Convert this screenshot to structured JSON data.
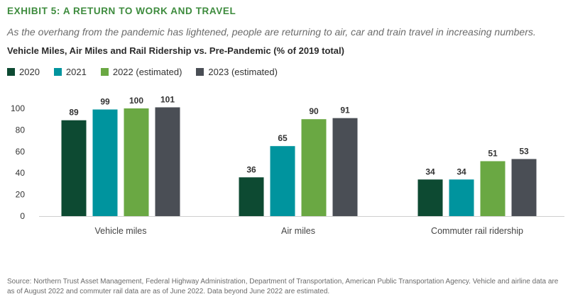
{
  "header": {
    "exhibit": "EXHIBIT 5: A RETURN TO WORK AND TRAVEL",
    "subtitle": "As the overhang from the pandemic has lightened, people are returning to air, car and train travel in increasing numbers.",
    "chart_title": "Vehicle Miles, Air Miles and Rail Ridership vs. Pre-Pandemic (% of 2019 total)"
  },
  "legend": [
    {
      "label": "2020",
      "color": "#0d4a32"
    },
    {
      "label": "2021",
      "color": "#00949e"
    },
    {
      "label": "2022 (estimated)",
      "color": "#6aa843"
    },
    {
      "label": "2023 (estimated)",
      "color": "#4a4e55"
    }
  ],
  "source": "Source: Northern Trust Asset Management, Federal Highway Administration, Department of Transportation, American Public Transportation Agency. Vehicle and airline data are as of August 2022 and commuter rail data are as of June 2022. Data beyond June 2022 are estimated.",
  "chart_data": {
    "type": "bar",
    "title": "Vehicle Miles, Air Miles and Rail Ridership vs. Pre-Pandemic (% of 2019 total)",
    "categories": [
      "Vehicle miles",
      "Air miles",
      "Commuter rail ridership"
    ],
    "series": [
      {
        "name": "2020",
        "color": "#0d4a32",
        "values": [
          89,
          36,
          34
        ]
      },
      {
        "name": "2021",
        "color": "#00949e",
        "values": [
          99,
          65,
          34
        ]
      },
      {
        "name": "2022 (estimated)",
        "color": "#6aa843",
        "values": [
          100,
          90,
          51
        ]
      },
      {
        "name": "2023 (estimated)",
        "color": "#4a4e55",
        "values": [
          101,
          91,
          53
        ]
      }
    ],
    "yticks": [
      "0",
      "20",
      "40",
      "60",
      "80",
      "100"
    ],
    "ylim": [
      0,
      120
    ],
    "grid": false,
    "legend_position": "top-left",
    "xlabel": "",
    "ylabel": ""
  }
}
